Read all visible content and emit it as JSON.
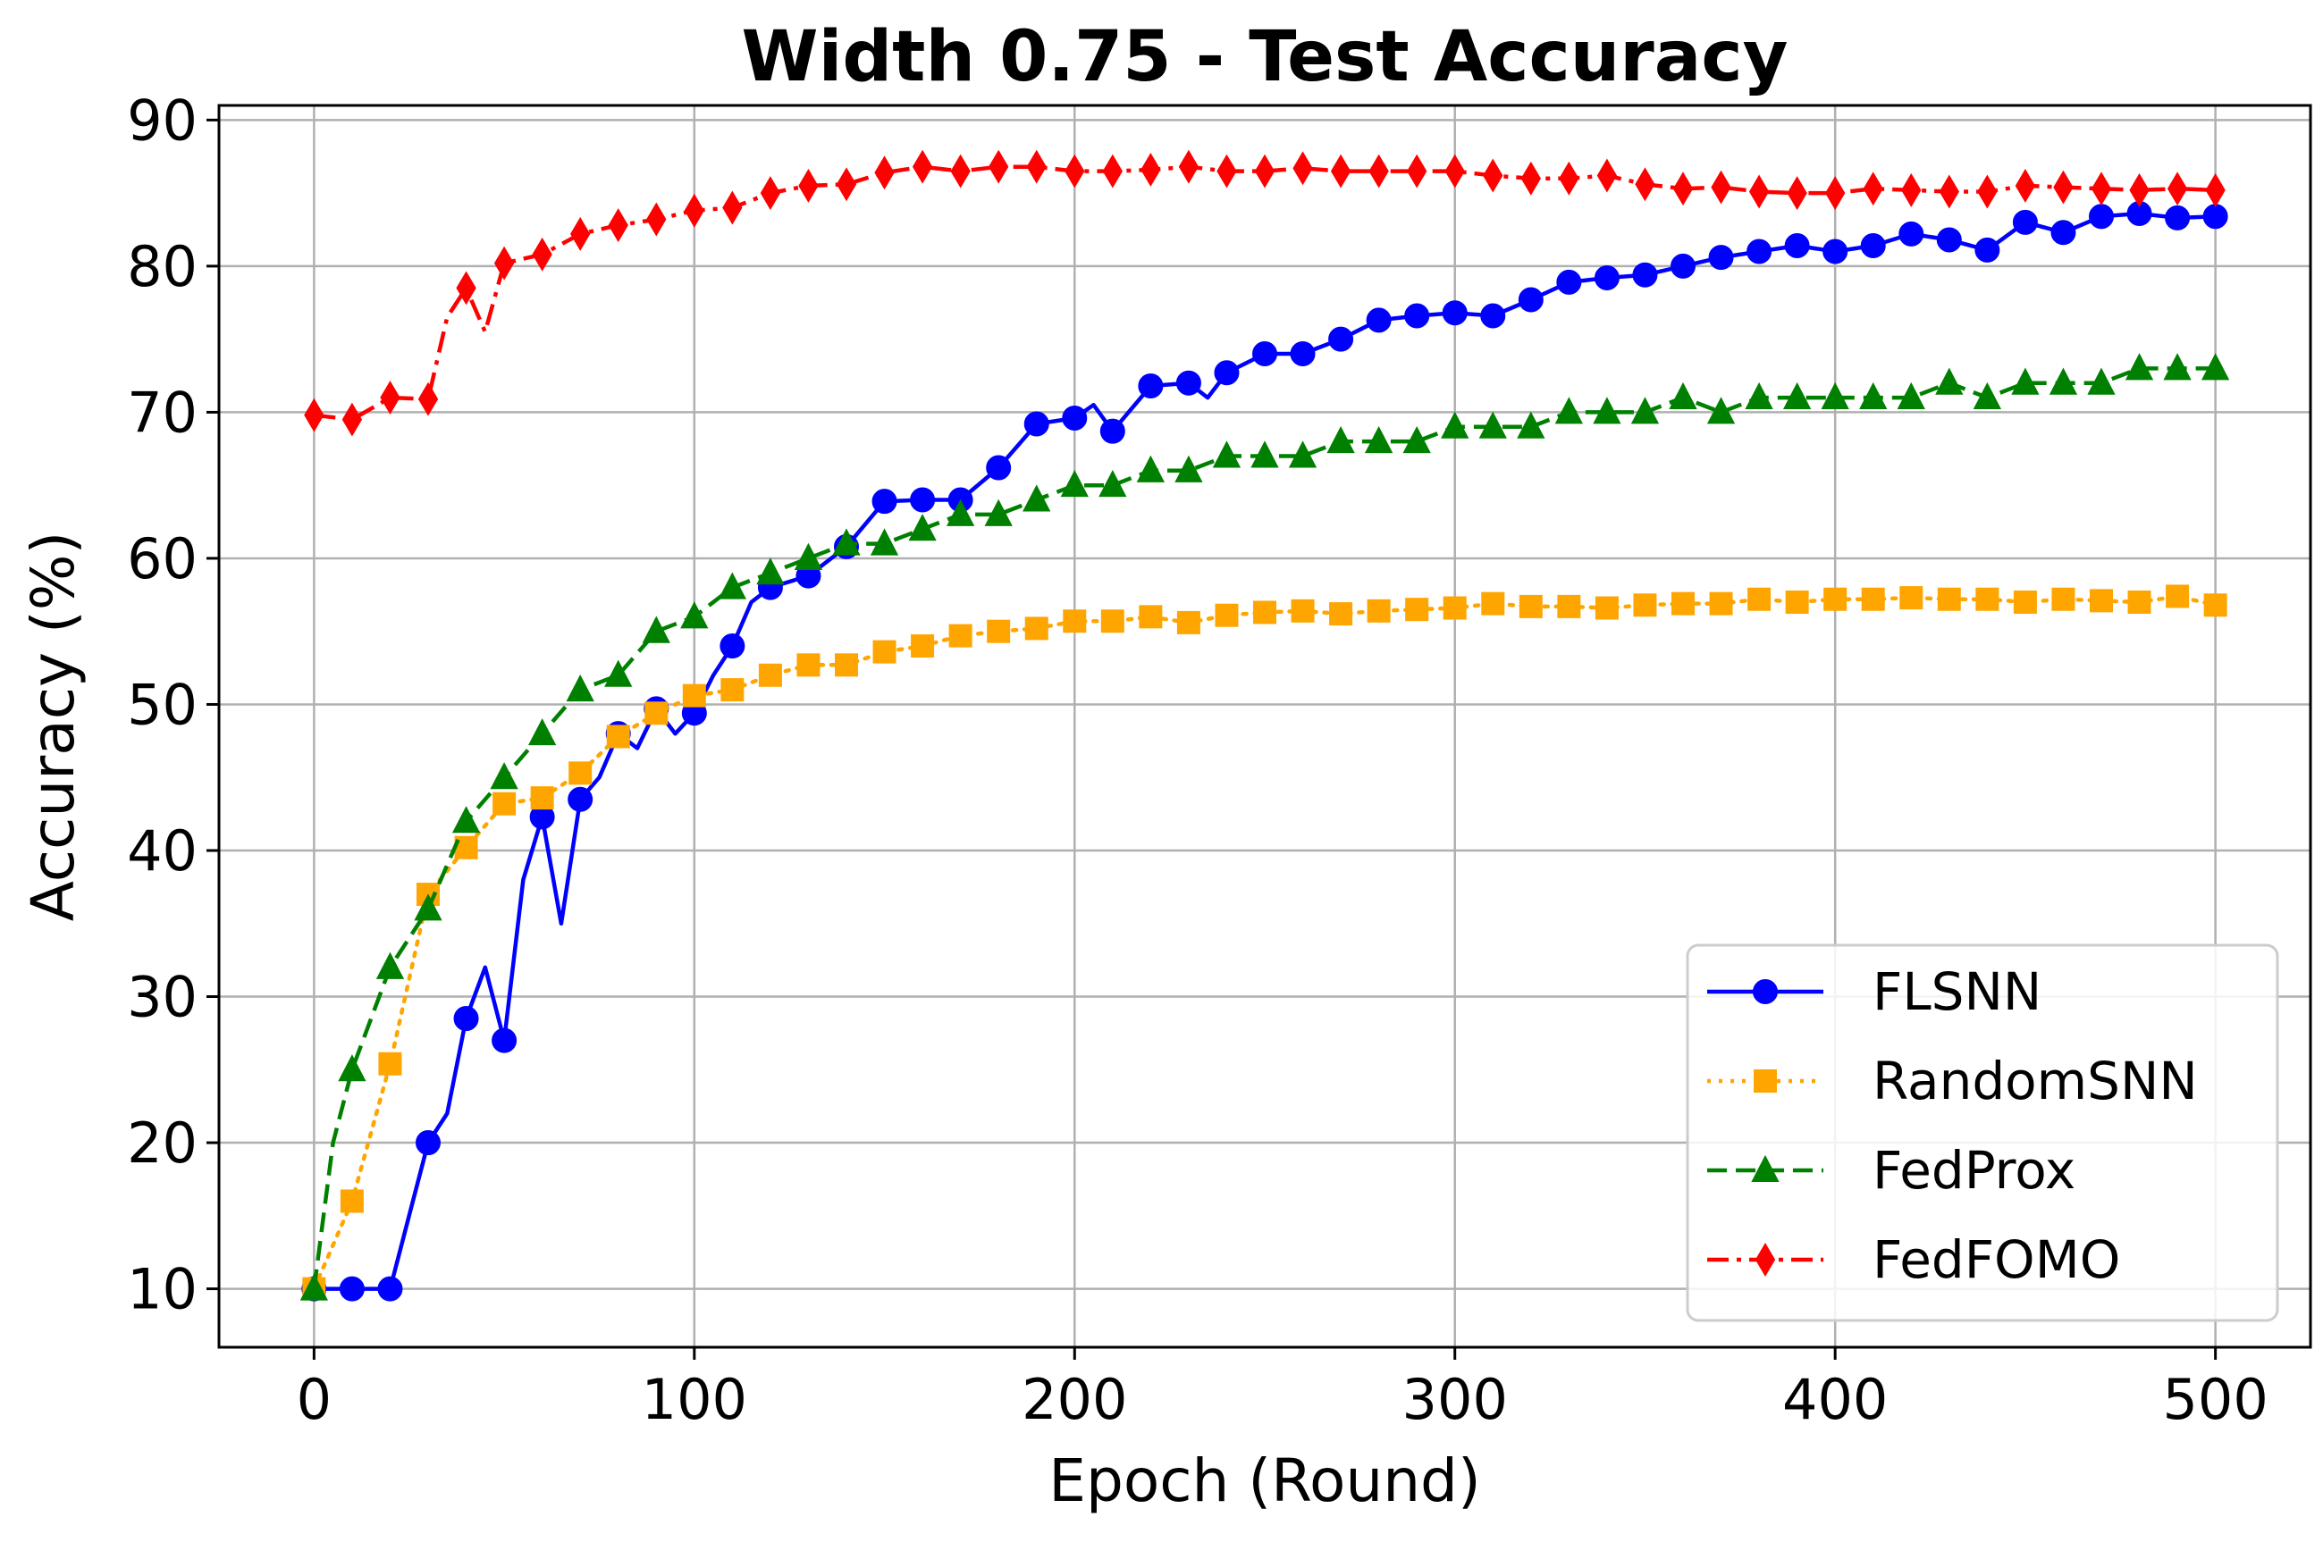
{
  "chart_data": {
    "type": "line",
    "title": "Width 0.75 - Test Accuracy",
    "xlabel": "Epoch (Round)",
    "ylabel": "Accuracy (%)",
    "xlim": [
      -25,
      525
    ],
    "ylim": [
      6,
      91
    ],
    "xticks": [
      0,
      100,
      200,
      300,
      400,
      500
    ],
    "yticks": [
      10,
      20,
      30,
      40,
      50,
      60,
      70,
      80,
      90
    ],
    "grid": true,
    "legend_position": "bottom-right",
    "series": [
      {
        "name": "FLSNN",
        "color": "#0000ff",
        "line_style": "solid",
        "marker": "circle",
        "x": [
          0,
          10,
          15,
          20,
          25,
          30,
          35,
          40,
          45,
          50,
          55,
          60,
          65,
          70,
          75,
          80,
          85,
          90,
          95,
          100,
          105,
          110,
          115,
          120,
          130,
          140,
          150,
          160,
          170,
          180,
          190,
          200,
          205,
          210,
          220,
          230,
          235,
          240,
          250,
          260,
          270,
          280,
          290,
          300,
          310,
          320,
          330,
          340,
          350,
          360,
          370,
          380,
          390,
          400,
          410,
          420,
          430,
          440,
          450,
          460,
          470,
          480,
          490,
          500
        ],
        "y": [
          10,
          10,
          10,
          10,
          15,
          20,
          22,
          28.5,
          32,
          27,
          38,
          42.3,
          35,
          43.5,
          45,
          48,
          47,
          49.7,
          48,
          49.4,
          52,
          54,
          57,
          58,
          58.8,
          60.8,
          63.9,
          64,
          64,
          66.2,
          69.2,
          69.6,
          70.5,
          68.7,
          71.8,
          72,
          71,
          72.7,
          74,
          74,
          75,
          76.3,
          76.6,
          76.8,
          76.6,
          77.7,
          78.9,
          79.2,
          79.4,
          80,
          80.6,
          81,
          81.4,
          81,
          81.4,
          82.2,
          81.8,
          81.1,
          83,
          82.3,
          83.4,
          83.6,
          83.3,
          83.4
        ]
      },
      {
        "name": "RandomSNN",
        "color": "#ffa500",
        "line_style": "dotted",
        "marker": "square",
        "x": [
          0,
          10,
          20,
          30,
          40,
          50,
          60,
          70,
          80,
          90,
          100,
          110,
          120,
          130,
          140,
          150,
          160,
          170,
          180,
          190,
          200,
          210,
          220,
          230,
          240,
          250,
          260,
          270,
          280,
          290,
          300,
          310,
          320,
          330,
          340,
          350,
          360,
          370,
          380,
          390,
          400,
          410,
          420,
          430,
          440,
          450,
          460,
          470,
          480,
          490,
          500
        ],
        "y": [
          10,
          16,
          25.4,
          37,
          40.2,
          43.2,
          43.6,
          45.3,
          47.8,
          49.4,
          50.6,
          51,
          52,
          52.7,
          52.7,
          53.6,
          54,
          54.7,
          55,
          55.2,
          55.7,
          55.7,
          56,
          55.6,
          56.1,
          56.3,
          56.4,
          56.2,
          56.4,
          56.5,
          56.6,
          56.9,
          56.7,
          56.7,
          56.6,
          56.8,
          56.9,
          56.9,
          57.2,
          57,
          57.2,
          57.2,
          57.3,
          57.2,
          57.2,
          57,
          57.2,
          57.1,
          57,
          57.4,
          56.8
        ]
      },
      {
        "name": "FedProx",
        "color": "#008000",
        "line_style": "dashed",
        "marker": "triangle",
        "x": [
          0,
          5,
          10,
          20,
          30,
          40,
          50,
          60,
          70,
          80,
          90,
          100,
          110,
          120,
          130,
          140,
          150,
          160,
          170,
          180,
          190,
          200,
          210,
          220,
          230,
          240,
          250,
          260,
          270,
          280,
          290,
          300,
          310,
          320,
          330,
          340,
          350,
          360,
          370,
          380,
          390,
          400,
          410,
          420,
          430,
          440,
          450,
          460,
          470,
          480,
          490,
          500
        ],
        "y": [
          10,
          20,
          25,
          32,
          36,
          42,
          45,
          48,
          51,
          52,
          55,
          56,
          58,
          59,
          60,
          61,
          61,
          62,
          63,
          63,
          64,
          65,
          65,
          66,
          66,
          67,
          67,
          67,
          68,
          68,
          68,
          69,
          69,
          69,
          70,
          70,
          70,
          71,
          70,
          71,
          71,
          71,
          71,
          71,
          72,
          71,
          72,
          72,
          72,
          73,
          73,
          73
        ]
      },
      {
        "name": "FedFOMO",
        "color": "#ff0000",
        "line_style": "dashdot",
        "marker": "diamond",
        "x": [
          0,
          10,
          20,
          30,
          35,
          40,
          45,
          50,
          60,
          70,
          80,
          90,
          100,
          110,
          120,
          130,
          140,
          150,
          160,
          170,
          180,
          190,
          200,
          210,
          220,
          230,
          240,
          250,
          260,
          270,
          280,
          290,
          300,
          310,
          320,
          330,
          340,
          350,
          360,
          370,
          380,
          390,
          400,
          410,
          420,
          430,
          440,
          450,
          460,
          470,
          480,
          490,
          500
        ],
        "y": [
          69.8,
          69.5,
          71,
          70.9,
          76.5,
          78.5,
          75.5,
          80.2,
          80.8,
          82.2,
          82.8,
          83.2,
          83.8,
          84,
          85,
          85.5,
          85.6,
          86.4,
          86.8,
          86.5,
          86.8,
          86.8,
          86.5,
          86.5,
          86.6,
          86.8,
          86.5,
          86.5,
          86.7,
          86.5,
          86.5,
          86.5,
          86.5,
          86.2,
          86,
          86,
          86.2,
          85.6,
          85.3,
          85.4,
          85.1,
          85,
          85,
          85.3,
          85.2,
          85.1,
          85.1,
          85.5,
          85.4,
          85.3,
          85.2,
          85.3,
          85.2
        ]
      }
    ]
  }
}
